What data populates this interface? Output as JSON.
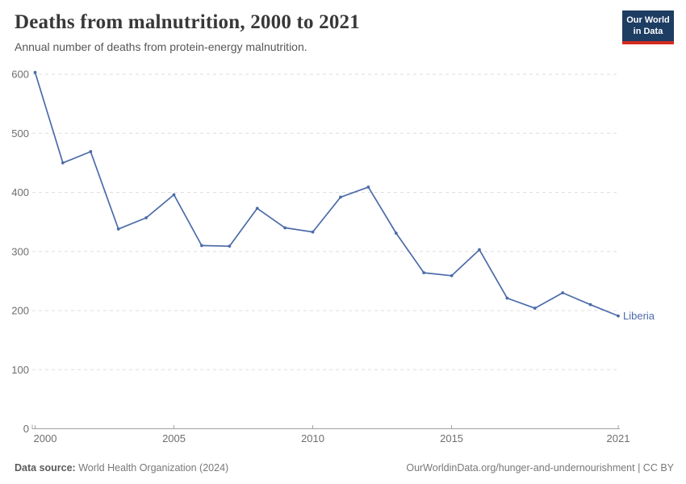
{
  "header": {
    "title": "Deaths from malnutrition, 2000 to 2021",
    "subtitle": "Annual number of deaths from protein-energy malnutrition.",
    "logo": {
      "line1": "Our World",
      "line2": "in Data"
    }
  },
  "chart_data": {
    "type": "line",
    "title": "Deaths from malnutrition, 2000 to 2021",
    "x": [
      2000,
      2001,
      2002,
      2003,
      2004,
      2005,
      2006,
      2007,
      2008,
      2009,
      2010,
      2011,
      2012,
      2013,
      2014,
      2015,
      2016,
      2017,
      2018,
      2019,
      2020,
      2021
    ],
    "series": [
      {
        "name": "Liberia",
        "values": [
          603,
          450,
          469,
          338,
          357,
          396,
          310,
          309,
          373,
          340,
          333,
          392,
          409,
          331,
          264,
          259,
          303,
          221,
          204,
          230,
          210,
          191
        ]
      }
    ],
    "xlim": [
      2000,
      2021
    ],
    "ylim": [
      0,
      600
    ],
    "x_ticks": [
      2000,
      2005,
      2010,
      2015,
      2021
    ],
    "y_ticks": [
      0,
      100,
      200,
      300,
      400,
      500,
      600
    ],
    "grid": "horizontal-dashed",
    "legend": "end-of-line-label",
    "end_label": "Liberia"
  },
  "footer": {
    "source_label": "Data source:",
    "source_text": " World Health Organization (2024)",
    "credit": "OurWorldinData.org/hunger-and-undernourishment | CC BY"
  },
  "colors": {
    "line": "#4C6BA9",
    "grid": "#dedede",
    "axis": "#a1a1a1",
    "tick_label": "#6e6e6e",
    "title": "#383838",
    "subtitle": "#565656",
    "logo_bg": "#1d3d63",
    "logo_red": "#d42b21"
  }
}
